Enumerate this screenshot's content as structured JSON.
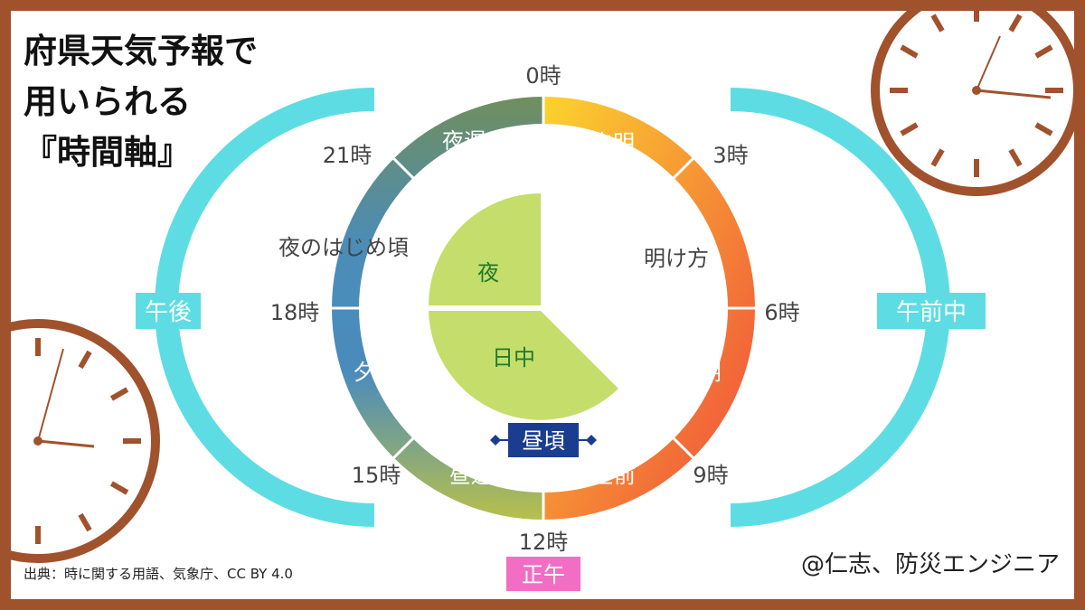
{
  "title": {
    "line1": "府県天気予報で",
    "line2": "用いられる",
    "line3": "『時間軸』"
  },
  "source": "出典：時に関する用語、気象庁、CC BY 4.0",
  "author": "@仁志、防災エンジニア",
  "hours": {
    "h0": "0時",
    "h3": "3時",
    "h6": "6時",
    "h9": "9時",
    "h12": "12時",
    "h15": "15時",
    "h18": "18時",
    "h21": "21時"
  },
  "segments": {
    "midnight_to_3": "未明",
    "three_to_6": "明け方",
    "six_to_9": "朝",
    "nine_to_12": "昼前",
    "twelve_to_15": "昼過ぎ",
    "fifteen_to_18": "夕方",
    "eighteen_to_21": "夜のはじめ頃",
    "twentyone_to_24": "夜遅く"
  },
  "noon_label": "昼頃",
  "inner": {
    "night": "夜",
    "daytime": "日中"
  },
  "halves": {
    "am": "午前中",
    "pm": "午後"
  },
  "noon_badge": "正午",
  "colors": {
    "frame": "#a0522d",
    "half_arcs": "#5ddde3",
    "inner_pie": "#c5dd6a",
    "inner_text": "#1e7a2e",
    "noon_box": "#1a3d8f",
    "noon_badge": "#f26dc4",
    "ring_gradient": [
      "#fbd32e",
      "#f8a23a",
      "#f0503c",
      "#4a8fbf",
      "#6f9a6a"
    ]
  }
}
